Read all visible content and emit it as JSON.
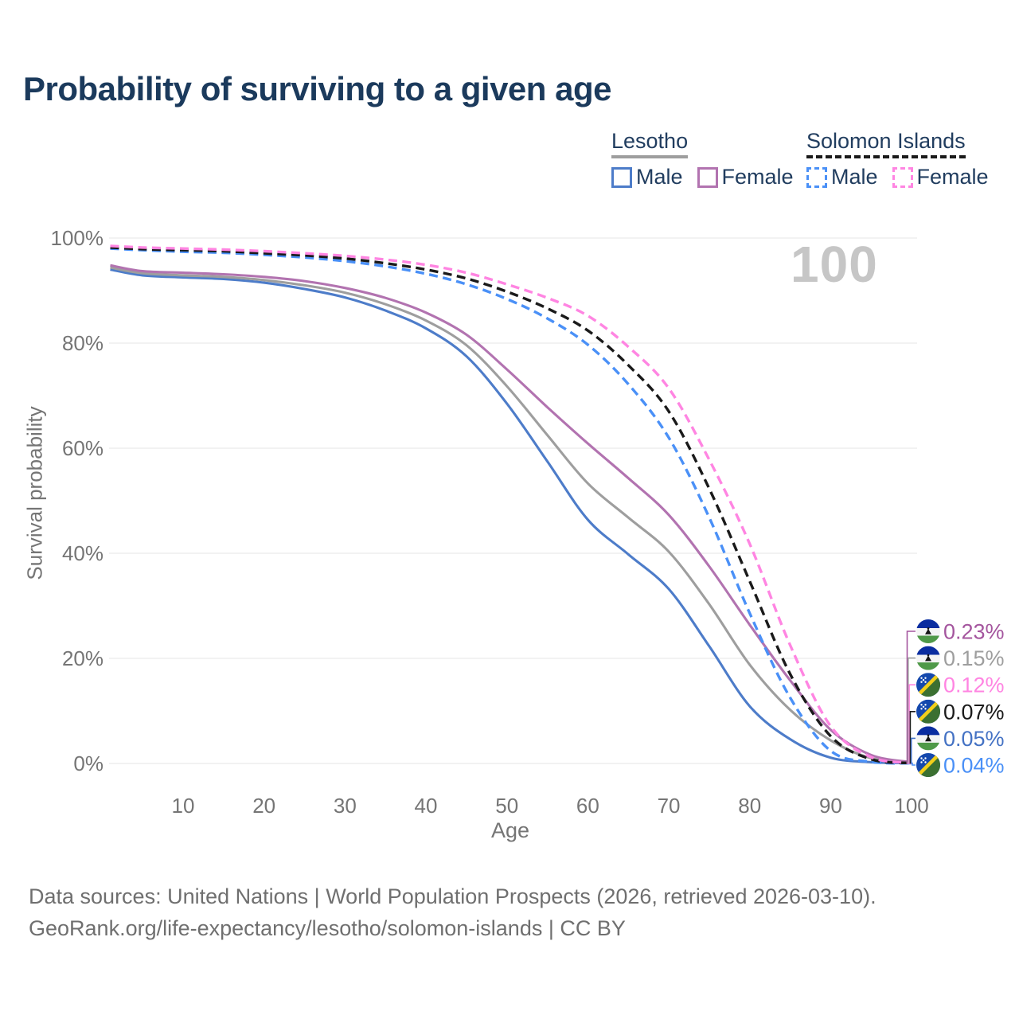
{
  "title": "Probability of surviving to a given age",
  "watermark": "100",
  "legend": {
    "groups": [
      {
        "label": "Lesotho",
        "line_style": "solid",
        "underline_color": "#9e9e9e",
        "items": [
          {
            "label": "Male",
            "color": "#4d7cc9"
          },
          {
            "label": "Female",
            "color": "#b273b0"
          }
        ]
      },
      {
        "label": "Solomon Islands",
        "line_style": "dashed",
        "underline_color": "#1a1a1a",
        "items": [
          {
            "label": "Male",
            "color": "#4a90f7"
          },
          {
            "label": "Female",
            "color": "#ff85e2"
          }
        ]
      }
    ]
  },
  "chart_data": {
    "type": "line",
    "title": "Probability of surviving to a given age",
    "xlabel": "Age",
    "ylabel": "Survival probability",
    "xlim": [
      0,
      102
    ],
    "ylim": [
      0,
      100
    ],
    "x_ticks": [
      10,
      20,
      30,
      40,
      50,
      60,
      70,
      80,
      90,
      100
    ],
    "y_ticks": [
      {
        "value": 0,
        "label": "0%"
      },
      {
        "value": 20,
        "label": "20%"
      },
      {
        "value": 40,
        "label": "40%"
      },
      {
        "value": 60,
        "label": "60%"
      },
      {
        "value": 80,
        "label": "80%"
      },
      {
        "value": 100,
        "label": "100%"
      }
    ],
    "grid": "horizontal",
    "legend_position": "top-right",
    "x": [
      1,
      5,
      10,
      15,
      20,
      25,
      30,
      35,
      40,
      45,
      50,
      55,
      60,
      65,
      70,
      75,
      80,
      85,
      90,
      95,
      100
    ],
    "series": [
      {
        "name": "Lesotho Male",
        "style": "solid",
        "color": "#4d7cc9",
        "values": [
          94.0,
          92.9,
          92.5,
          92.2,
          91.5,
          90.3,
          88.7,
          86.2,
          82.8,
          77.5,
          68.5,
          57.5,
          46.4,
          39.8,
          33.2,
          22.3,
          10.9,
          4.6,
          1.1,
          0.25,
          0.05
        ],
        "end_label": "0.05%"
      },
      {
        "name": "Lesotho",
        "style": "solid",
        "color": "#9e9e9e",
        "values": [
          94.4,
          93.3,
          92.9,
          92.6,
          92.0,
          91.0,
          89.6,
          87.4,
          84.3,
          79.6,
          71.8,
          62.5,
          53.3,
          46.8,
          40.3,
          30.3,
          18.8,
          10.2,
          4.4,
          1.0,
          0.15
        ],
        "end_label": "0.15%"
      },
      {
        "name": "Lesotho Female",
        "style": "solid",
        "color": "#b273b0",
        "values": [
          94.8,
          93.7,
          93.4,
          93.1,
          92.6,
          91.8,
          90.5,
          88.6,
          85.8,
          81.6,
          75.0,
          67.8,
          60.9,
          54.3,
          47.3,
          37.5,
          26.4,
          15.8,
          6.4,
          1.6,
          0.23
        ],
        "end_label": "0.23%"
      },
      {
        "name": "Solomon Islands Male",
        "style": "dashed",
        "color": "#4a90f7",
        "values": [
          98.0,
          97.7,
          97.4,
          97.2,
          96.8,
          96.3,
          95.6,
          94.6,
          93.2,
          91.2,
          88.4,
          84.7,
          79.7,
          72.2,
          62.0,
          46.8,
          28.6,
          12.5,
          2.4,
          0.3,
          0.04
        ],
        "end_label": "0.04%"
      },
      {
        "name": "Solomon Islands",
        "style": "dashed",
        "color": "#1a1a1a",
        "values": [
          98.2,
          97.9,
          97.7,
          97.5,
          97.1,
          96.7,
          96.1,
          95.2,
          94.0,
          92.3,
          89.8,
          86.6,
          82.4,
          75.8,
          67.0,
          52.3,
          34.7,
          17.0,
          5.2,
          0.8,
          0.07
        ],
        "end_label": "0.07%"
      },
      {
        "name": "Solomon Islands Female",
        "style": "dashed",
        "color": "#ff85e2",
        "values": [
          98.5,
          98.2,
          98.0,
          97.8,
          97.5,
          97.1,
          96.6,
          95.9,
          94.9,
          93.4,
          91.2,
          88.6,
          85.2,
          79.3,
          71.4,
          57.8,
          41.8,
          22.5,
          7.1,
          1.2,
          0.12
        ],
        "end_label": "0.12%"
      }
    ]
  },
  "end_labels": [
    {
      "value": "0.23%",
      "color": "#a4559e",
      "flag": "lesotho"
    },
    {
      "value": "0.15%",
      "color": "#9e9e9e",
      "flag": "lesotho"
    },
    {
      "value": "0.12%",
      "color": "#ff85e2",
      "flag": "solomon-islands"
    },
    {
      "value": "0.07%",
      "color": "#1a1a1a",
      "flag": "solomon-islands"
    },
    {
      "value": "0.05%",
      "color": "#4472c4",
      "flag": "lesotho"
    },
    {
      "value": "0.04%",
      "color": "#4a90f7",
      "flag": "solomon-islands"
    }
  ],
  "footer": {
    "line1": "Data sources: United Nations | World Population Prospects (2026, retrieved 2026-03-10).",
    "line2": "GeoRank.org/life-expectancy/lesotho/solomon-islands | CC BY"
  }
}
